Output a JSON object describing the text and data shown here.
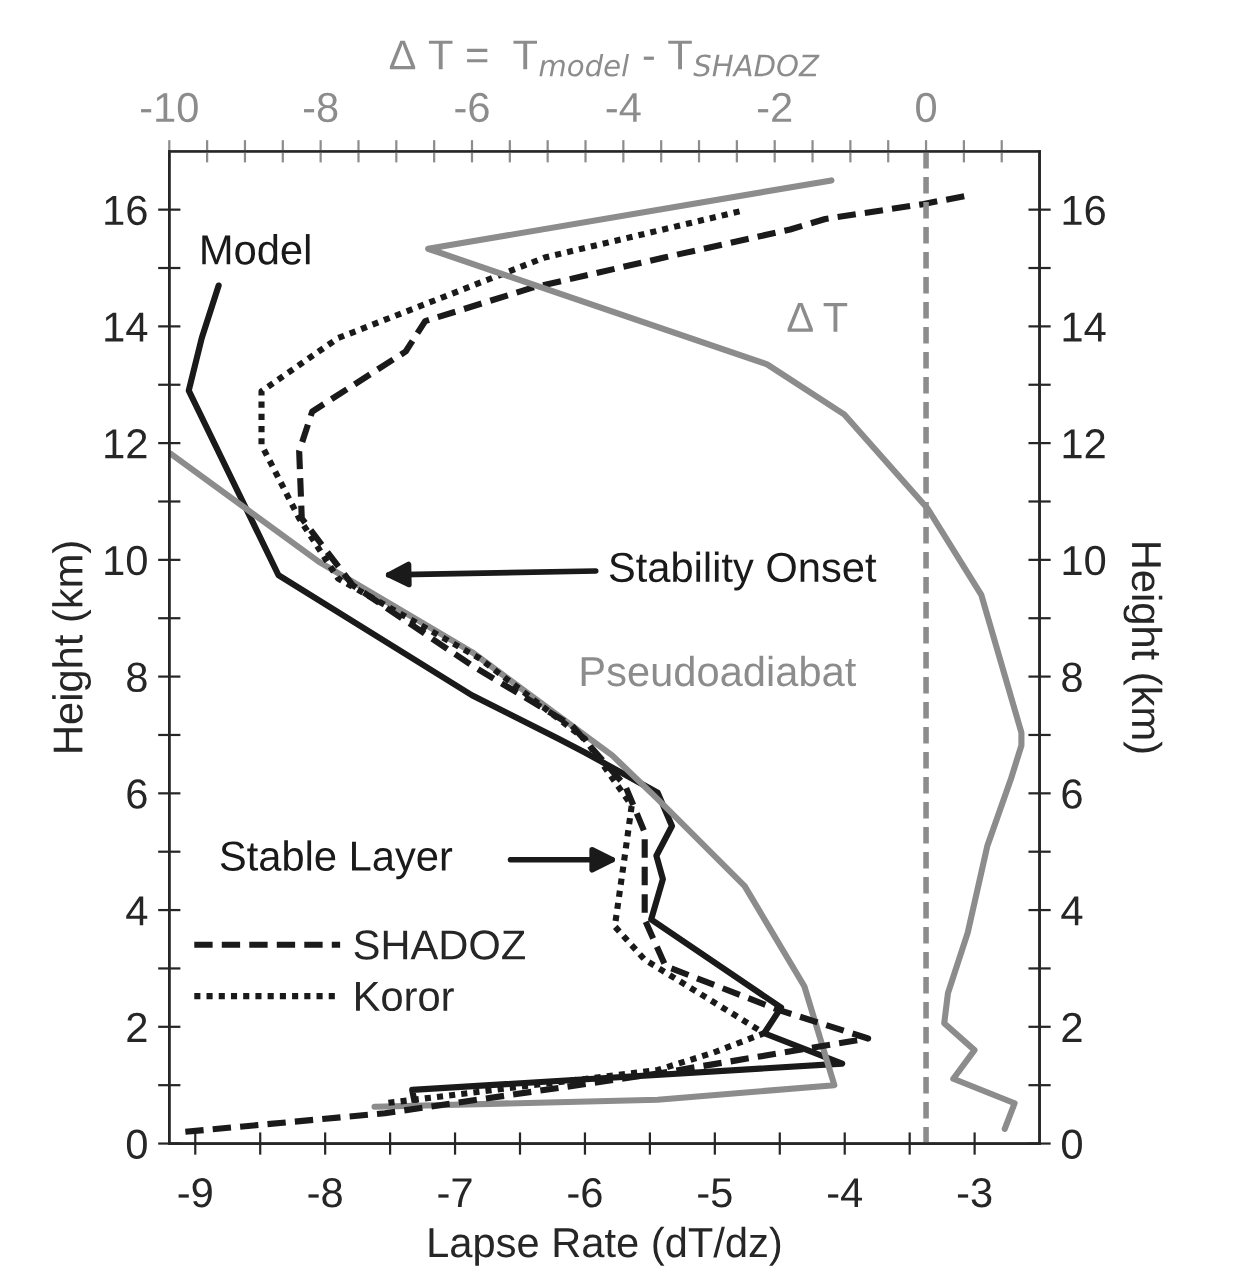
{
  "chart_data": {
    "type": "line",
    "xlabel": "Lapse Rate (dT/dz)",
    "ylabel": "Height (km)",
    "y2label": "Height (km)",
    "x2label": "Δ T =  T$_{model}$ - T$_{SHADOZ}$",
    "xlim": [
      -9.2,
      -2.5
    ],
    "xticks": [
      -9,
      {
        "value": -8.5,
        "label": null
      },
      -8,
      {
        "value": -7.5,
        "label": null
      },
      -7,
      {
        "value": -6.5,
        "label": null
      },
      -6,
      {
        "value": -5.5,
        "label": null
      },
      -5,
      {
        "value": -4.5,
        "label": null
      },
      -4,
      {
        "value": -3.5,
        "label": null
      },
      -3
    ],
    "x2lim": [
      -10,
      1.5
    ],
    "x2ticks": [
      -10,
      {
        "value": -9.5,
        "label": null
      },
      {
        "value": -9,
        "label": null
      },
      {
        "value": -8.5,
        "label": null
      },
      -8,
      {
        "value": -7.5,
        "label": null
      },
      {
        "value": -7,
        "label": null
      },
      {
        "value": -6.5,
        "label": null
      },
      -6,
      {
        "value": -5.5,
        "label": null
      },
      {
        "value": -5,
        "label": null
      },
      {
        "value": -4.5,
        "label": null
      },
      -4,
      {
        "value": -3.5,
        "label": null
      },
      {
        "value": -3,
        "label": null
      },
      {
        "value": -2.5,
        "label": null
      },
      -2,
      {
        "value": -1.5,
        "label": null
      },
      {
        "value": -1,
        "label": null
      },
      {
        "value": -0.5,
        "label": null
      },
      0,
      {
        "value": 0.5,
        "label": null
      },
      {
        "value": 1,
        "label": null
      }
    ],
    "ylim": [
      0,
      17
    ],
    "yticks": [
      0,
      {
        "value": 1,
        "label": null
      },
      2,
      {
        "value": 3,
        "label": null
      },
      4,
      {
        "value": 5,
        "label": null
      },
      6,
      {
        "value": 7,
        "label": null
      },
      8,
      {
        "value": 9,
        "label": null
      },
      10,
      {
        "value": 11,
        "label": null
      },
      12,
      {
        "value": 13,
        "label": null
      },
      14,
      {
        "value": 15,
        "label": null
      },
      16
    ],
    "y2lim": [
      0,
      17
    ],
    "y2ticks": [
      0,
      {
        "value": 1,
        "label": null
      },
      2,
      {
        "value": 3,
        "label": null
      },
      4,
      {
        "value": 5,
        "label": null
      },
      6,
      {
        "value": 7,
        "label": null
      },
      8,
      {
        "value": 9,
        "label": null
      },
      10,
      {
        "value": 11,
        "label": null
      },
      12,
      {
        "value": 13,
        "label": null
      },
      14,
      {
        "value": 15,
        "label": null
      },
      16
    ],
    "grid": false,
    "legend": "bottom left",
    "marker": "none",
    "ref_lines": [
      {
        "axis": "x2",
        "value": 0,
        "color": "#8c8c8c",
        "line_style": "dashed"
      }
    ],
    "series": [
      {
        "color": "#1a1a1a",
        "line_style": "solid",
        "values": [
          14.7,
          13.8,
          12.9,
          9.74,
          7.68,
          6.93,
          6.7,
          6.01,
          5.44,
          4.93,
          4.53,
          3.84,
          2.33,
          1.89,
          1.37,
          0.92,
          0.69
        ],
        "x": [
          -8.82,
          -8.95,
          -9.05,
          -8.36,
          -6.87,
          -6.2,
          -6.0,
          -5.44,
          -5.33,
          -5.45,
          -5.4,
          -5.49,
          -4.49,
          -4.62,
          -4.02,
          -7.33,
          -7.31
        ]
      },
      {
        "color": "#8c8c8c",
        "line_style": "solid",
        "values": [
          11.82,
          9.97,
          8.42,
          6.65,
          5.9,
          4.41,
          2.69,
          1.0,
          0.75,
          0.63
        ],
        "x": [
          -9.19,
          -8.05,
          -6.87,
          -5.79,
          -5.44,
          -4.77,
          -4.31,
          -4.08,
          -5.44,
          -7.62
        ]
      },
      {
        "name": "SHADOZ",
        "color": "#1a1a1a",
        "line_style": "dashed",
        "values": [
          16.23,
          16.09,
          15.84,
          15.66,
          15.18,
          14.66,
          14.09,
          13.57,
          12.54,
          11.86,
          10.71,
          9.57,
          8.19,
          7.16,
          6.13,
          5.33,
          3.84,
          3.04,
          2.29,
          1.8,
          1.2,
          0.52,
          0.2
        ],
        "x": [
          -3.08,
          -3.41,
          -4.15,
          -4.42,
          -5.39,
          -6.41,
          -7.23,
          -7.38,
          -8.1,
          -8.2,
          -8.18,
          -7.79,
          -6.87,
          -6.1,
          -5.69,
          -5.54,
          -5.54,
          -5.38,
          -4.51,
          -3.82,
          -5.44,
          -7.54,
          -9.08
        ]
      },
      {
        "name": "Koror",
        "color": "#1a1a1a",
        "line_style": "dotted",
        "values": [
          15.97,
          15.18,
          13.8,
          12.89,
          11.97,
          10.71,
          9.68,
          8.31,
          6.93,
          5.79,
          4.98,
          3.72,
          3.15,
          1.89,
          1.55,
          1.26,
          0.69
        ],
        "x": [
          -4.81,
          -6.31,
          -7.9,
          -8.49,
          -8.49,
          -8.2,
          -7.9,
          -6.81,
          -6.0,
          -5.64,
          -5.69,
          -5.77,
          -5.54,
          -4.62,
          -5.02,
          -5.44,
          -7.54
        ]
      },
      {
        "axis": "x2",
        "color": "#8c8c8c",
        "line_style": "solid",
        "values": [
          16.5,
          15.33,
          13.35,
          12.49,
          10.88,
          9.4,
          7.04,
          6.82,
          6.24,
          5.1,
          3.61,
          2.58,
          2.06,
          1.6,
          1.11,
          0.69,
          0.25
        ],
        "x": [
          -1.25,
          -6.58,
          -2.1,
          -1.08,
          0.02,
          0.73,
          1.26,
          1.26,
          1.12,
          0.81,
          0.55,
          0.29,
          0.24,
          0.64,
          0.36,
          1.17,
          1.04
        ]
      }
    ],
    "annotations": [
      "Model",
      "Pseudoadiabat",
      "Δ T",
      "Stability Onset",
      "Stable Layer"
    ]
  }
}
